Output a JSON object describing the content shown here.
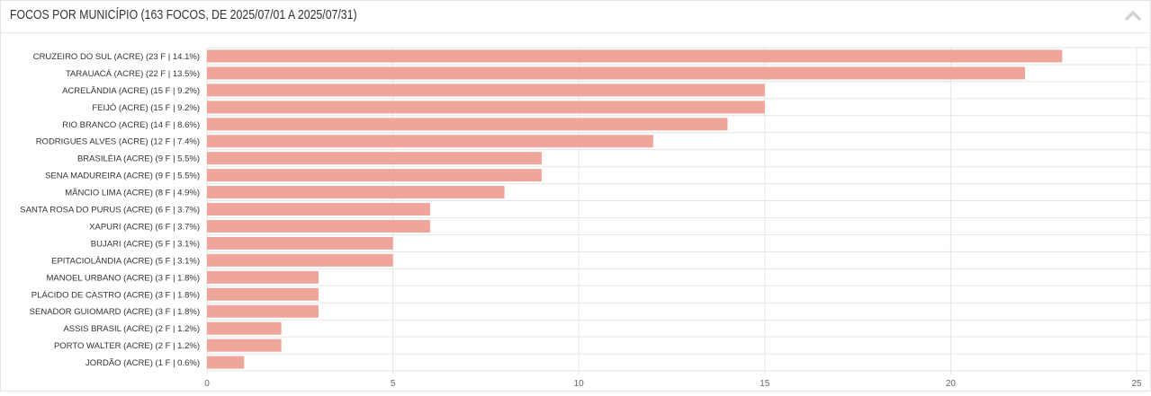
{
  "header": {
    "title": "FOCOS POR MUNICÍPIO (163 FOCOS, DE 2025/07/01 A 2025/07/31)",
    "collapse_icon": "chevron-up-icon"
  },
  "colors": {
    "bar": "#f0a59b",
    "grid": "#e6e6e6",
    "axis_text": "#666666",
    "label_text": "#333333"
  },
  "chart_data": {
    "type": "bar",
    "orientation": "horizontal",
    "title": "FOCOS POR MUNICÍPIO (163 FOCOS, DE 2025/07/01 A 2025/07/31)",
    "xlabel": "",
    "ylabel": "",
    "xlim": [
      0,
      25
    ],
    "xticks": [
      0,
      5,
      10,
      15,
      20,
      25
    ],
    "grid": true,
    "legend": "none",
    "categories": [
      "CRUZEIRO DO SUL (ACRE) (23 F | 14.1%)",
      "TARAUACÁ (ACRE) (22 F | 13.5%)",
      "ACRELÂNDIA (ACRE) (15 F | 9.2%)",
      "FEIJÓ (ACRE) (15 F | 9.2%)",
      "RIO BRANCO (ACRE) (14 F | 8.6%)",
      "RODRIGUES ALVES (ACRE) (12 F | 7.4%)",
      "BRASILÉIA (ACRE) (9 F | 5.5%)",
      "SENA MADUREIRA (ACRE) (9 F | 5.5%)",
      "MÂNCIO LIMA (ACRE) (8 F | 4.9%)",
      "SANTA ROSA DO PURUS (ACRE) (6 F | 3.7%)",
      "XAPURI (ACRE) (6 F | 3.7%)",
      "BUJARI (ACRE) (5 F | 3.1%)",
      "EPITACIOLÂNDIA (ACRE) (5 F | 3.1%)",
      "MANOEL URBANO (ACRE) (3 F | 1.8%)",
      "PLÁCIDO DE CASTRO (ACRE) (3 F | 1.8%)",
      "SENADOR GUIOMARD (ACRE) (3 F | 1.8%)",
      "ASSIS BRASIL (ACRE) (2 F | 1.2%)",
      "PORTO WALTER (ACRE) (2 F | 1.2%)",
      "JORDÃO (ACRE) (1 F | 0.6%)"
    ],
    "values": [
      23,
      22,
      15,
      15,
      14,
      12,
      9,
      9,
      8,
      6,
      6,
      5,
      5,
      3,
      3,
      3,
      2,
      2,
      1
    ]
  }
}
